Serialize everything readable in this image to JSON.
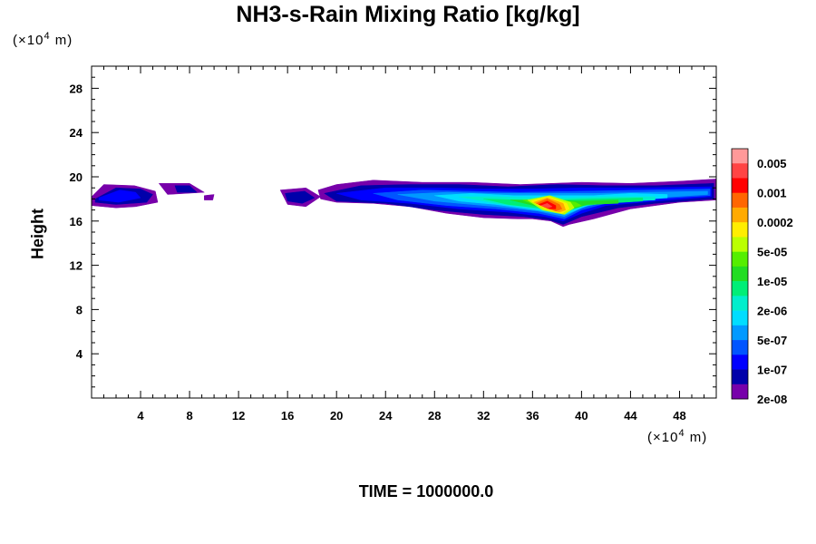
{
  "title": "NH3-s-Rain Mixing Ratio [kg/kg]",
  "y_unit": {
    "prefix": "(×10",
    "exp": "4",
    "suffix": " m)"
  },
  "x_unit": {
    "prefix": "(×10",
    "exp": "4",
    "suffix": " m)"
  },
  "ylabel": "Height",
  "footer": "TIME = 1000000.0",
  "chart_data": {
    "type": "heatmap",
    "title": "NH3-s-Rain Mixing Ratio [kg/kg]",
    "xlabel": "",
    "ylabel": "Height",
    "x_unit": "×10^4 m",
    "y_unit": "×10^4 m",
    "xlim": [
      0,
      51
    ],
    "ylim": [
      0,
      30
    ],
    "xticks": [
      4,
      8,
      12,
      16,
      20,
      24,
      28,
      32,
      36,
      40,
      44,
      48
    ],
    "yticks": [
      4,
      8,
      12,
      16,
      20,
      24,
      28
    ],
    "grid": false,
    "colorbar": {
      "position": "right",
      "labels": [
        "0.005",
        "0.001",
        "0.0002",
        "5e-05",
        "1e-05",
        "2e-06",
        "5e-07",
        "1e-07",
        "2e-08"
      ],
      "colors": [
        "#ff9999",
        "#ff4444",
        "#ff0000",
        "#ff6600",
        "#ffaa00",
        "#ffee00",
        "#bbff00",
        "#55ee00",
        "#22dd22",
        "#00ee77",
        "#00eecc",
        "#00ddff",
        "#0099ff",
        "#0055ff",
        "#0000ff",
        "#0000aa",
        "#7700aa"
      ]
    },
    "regions": [
      {
        "level": 0,
        "color": "#7700aa",
        "bounds": [
          [
            0,
            18.2
          ],
          [
            1,
            19.3
          ],
          [
            3.5,
            19.2
          ],
          [
            5.2,
            18.7
          ],
          [
            5.4,
            17.7
          ],
          [
            3.6,
            17.3
          ],
          [
            2,
            17.2
          ],
          [
            0,
            17.4
          ]
        ]
      },
      {
        "level": 0,
        "color": "#7700aa",
        "bounds": [
          [
            5.5,
            19.4
          ],
          [
            8,
            19.4
          ],
          [
            9.2,
            18.6
          ],
          [
            6.2,
            18.4
          ]
        ]
      },
      {
        "level": 0,
        "color": "#7700aa",
        "bounds": [
          [
            9.2,
            18.3
          ],
          [
            10,
            18.4
          ],
          [
            9.9,
            17.9
          ],
          [
            9.2,
            17.9
          ]
        ]
      },
      {
        "level": 0,
        "color": "#7700aa",
        "bounds": [
          [
            15.4,
            18.8
          ],
          [
            17.5,
            19
          ],
          [
            18.7,
            18.2
          ],
          [
            17.5,
            17.3
          ],
          [
            16,
            17.5
          ]
        ]
      },
      {
        "level": 0,
        "color": "#7700aa",
        "bounds": [
          [
            18.5,
            18.8
          ],
          [
            20,
            19.3
          ],
          [
            23,
            19.7
          ],
          [
            27,
            19.5
          ],
          [
            31,
            19.5
          ],
          [
            35,
            19.3
          ],
          [
            40,
            19.5
          ],
          [
            44,
            19.4
          ],
          [
            48,
            19.6
          ],
          [
            51,
            19.8
          ],
          [
            51,
            17.9
          ],
          [
            48,
            17.7
          ],
          [
            44,
            17.1
          ],
          [
            41,
            16.2
          ],
          [
            39,
            15.7
          ],
          [
            38.5,
            15.5
          ],
          [
            37.5,
            16
          ],
          [
            36,
            16.2
          ],
          [
            34.8,
            16.2
          ],
          [
            32,
            16.3
          ],
          [
            29,
            16.7
          ],
          [
            26,
            17.3
          ],
          [
            23,
            17.6
          ],
          [
            20,
            17.7
          ],
          [
            18.7,
            18
          ]
        ]
      },
      {
        "level": 1,
        "color": "#0000aa",
        "bounds": [
          [
            0.3,
            18
          ],
          [
            2,
            19
          ],
          [
            4,
            18.9
          ],
          [
            5,
            18.4
          ],
          [
            4.5,
            17.7
          ],
          [
            2,
            17.5
          ],
          [
            0.3,
            17.7
          ]
        ]
      },
      {
        "level": 1,
        "color": "#0000aa",
        "bounds": [
          [
            6.8,
            19.2
          ],
          [
            8,
            19.2
          ],
          [
            8.6,
            18.6
          ],
          [
            7,
            18.6
          ]
        ]
      },
      {
        "level": 1,
        "color": "#0000aa",
        "bounds": [
          [
            15.8,
            18.5
          ],
          [
            17.4,
            18.7
          ],
          [
            18.2,
            18.1
          ],
          [
            17.2,
            17.6
          ],
          [
            16,
            17.8
          ]
        ]
      },
      {
        "level": 1,
        "color": "#0000aa",
        "bounds": [
          [
            19,
            18.5
          ],
          [
            22,
            19.2
          ],
          [
            26,
            19.3
          ],
          [
            30,
            19.3
          ],
          [
            34,
            19.1
          ],
          [
            38,
            19.3
          ],
          [
            42,
            19.2
          ],
          [
            46,
            19.2
          ],
          [
            50.8,
            19.4
          ],
          [
            50.8,
            18
          ],
          [
            46,
            17.6
          ],
          [
            43,
            17.2
          ],
          [
            40,
            16.4
          ],
          [
            38.5,
            15.7
          ],
          [
            37.4,
            16.1
          ],
          [
            35.3,
            16.4
          ],
          [
            32,
            16.6
          ],
          [
            28,
            17
          ],
          [
            24,
            17.6
          ],
          [
            20,
            17.8
          ]
        ]
      },
      {
        "level": 2,
        "color": "#0000ff",
        "bounds": [
          [
            0.6,
            18.1
          ],
          [
            2.3,
            18.8
          ],
          [
            3.6,
            18.6
          ],
          [
            4,
            18.1
          ],
          [
            2.2,
            17.7
          ],
          [
            0.6,
            17.9
          ]
        ]
      },
      {
        "level": 2,
        "color": "#0000ff",
        "bounds": [
          [
            20,
            18.5
          ],
          [
            24,
            19
          ],
          [
            28,
            19
          ],
          [
            32,
            18.9
          ],
          [
            36,
            18.9
          ],
          [
            40,
            19
          ],
          [
            45,
            19
          ],
          [
            50.6,
            19.1
          ],
          [
            50.6,
            18.2
          ],
          [
            46,
            17.8
          ],
          [
            42,
            17.4
          ],
          [
            40,
            16.7
          ],
          [
            38.5,
            16
          ],
          [
            37,
            16.4
          ],
          [
            34,
            16.8
          ],
          [
            30,
            17.1
          ],
          [
            26,
            17.6
          ],
          [
            22,
            17.9
          ]
        ]
      },
      {
        "level": 3,
        "color": "#0055ff",
        "bounds": [
          [
            23,
            18.5
          ],
          [
            27,
            18.8
          ],
          [
            31,
            18.7
          ],
          [
            35,
            18.6
          ],
          [
            40,
            18.7
          ],
          [
            45,
            18.8
          ],
          [
            50.5,
            18.9
          ],
          [
            50.5,
            18.3
          ],
          [
            46,
            18
          ],
          [
            42,
            17.6
          ],
          [
            40,
            17
          ],
          [
            38.6,
            16.2
          ],
          [
            36.5,
            16.7
          ],
          [
            33,
            17.1
          ],
          [
            29,
            17.4
          ],
          [
            25,
            17.9
          ]
        ]
      },
      {
        "level": 4,
        "color": "#0099ff",
        "bounds": [
          [
            25,
            18.4
          ],
          [
            29,
            18.6
          ],
          [
            33,
            18.5
          ],
          [
            37,
            18.5
          ],
          [
            41,
            18.5
          ],
          [
            45,
            18.6
          ],
          [
            50.3,
            18.7
          ],
          [
            50.3,
            18.4
          ],
          [
            46,
            18.1
          ],
          [
            42,
            17.8
          ],
          [
            40,
            17.2
          ],
          [
            38.6,
            16.4
          ],
          [
            36.4,
            16.9
          ],
          [
            33,
            17.3
          ],
          [
            28,
            17.8
          ]
        ]
      },
      {
        "level": 5,
        "color": "#00ddff",
        "bounds": [
          [
            28,
            18.3
          ],
          [
            31,
            18.5
          ],
          [
            34.5,
            18.3
          ],
          [
            38,
            18.3
          ],
          [
            41,
            18.3
          ],
          [
            44,
            18.5
          ],
          [
            47,
            18.4
          ],
          [
            47,
            18.1
          ],
          [
            43,
            17.8
          ],
          [
            40.5,
            17.4
          ],
          [
            38.7,
            16.6
          ],
          [
            36.3,
            17
          ],
          [
            33,
            17.5
          ],
          [
            30,
            17.8
          ]
        ]
      },
      {
        "level": 6,
        "color": "#00eecc",
        "bounds": [
          [
            30,
            18.2
          ],
          [
            33,
            18.2
          ],
          [
            36,
            18.1
          ],
          [
            39,
            18.1
          ],
          [
            42,
            18.2
          ],
          [
            46,
            18.2
          ],
          [
            46,
            17.9
          ],
          [
            42,
            17.7
          ],
          [
            40.2,
            17.4
          ],
          [
            38.8,
            16.8
          ],
          [
            36.3,
            17.1
          ],
          [
            33,
            17.6
          ]
        ]
      },
      {
        "level": 7,
        "color": "#00ee77",
        "bounds": [
          [
            32,
            18
          ],
          [
            35,
            17.9
          ],
          [
            38,
            17.9
          ],
          [
            41,
            18
          ],
          [
            45,
            18.1
          ],
          [
            45,
            17.8
          ],
          [
            42,
            17.6
          ],
          [
            40.2,
            17.4
          ],
          [
            38.8,
            16.9
          ],
          [
            36.4,
            17.2
          ],
          [
            34,
            17.5
          ]
        ]
      },
      {
        "level": 8,
        "color": "#22dd22",
        "bounds": [
          [
            34.2,
            17.9
          ],
          [
            37,
            17.9
          ],
          [
            40,
            17.8
          ],
          [
            43,
            17.9
          ],
          [
            43,
            17.6
          ],
          [
            40.5,
            17.5
          ],
          [
            38.9,
            17
          ],
          [
            36.5,
            17.3
          ]
        ]
      },
      {
        "level": 9,
        "color": "#55ee00",
        "bounds": [
          [
            35.2,
            17.9
          ],
          [
            37.5,
            18
          ],
          [
            39.5,
            17.7
          ],
          [
            40,
            17.4
          ],
          [
            38.9,
            17.1
          ],
          [
            36.6,
            17.3
          ]
        ]
      },
      {
        "level": 10,
        "color": "#bbff00",
        "bounds": [
          [
            35.6,
            17.9
          ],
          [
            37.4,
            18.3
          ],
          [
            39.1,
            17.7
          ],
          [
            39.4,
            17.2
          ],
          [
            38.6,
            16.6
          ],
          [
            36.8,
            17
          ]
        ]
      },
      {
        "level": 11,
        "color": "#ffee00",
        "bounds": [
          [
            35.9,
            17.8
          ],
          [
            37.3,
            18.2
          ],
          [
            38.8,
            17.6
          ],
          [
            39,
            17.1
          ],
          [
            38.4,
            16.7
          ],
          [
            37,
            17.1
          ]
        ]
      },
      {
        "level": 12,
        "color": "#ffaa00",
        "bounds": [
          [
            36.1,
            17.7
          ],
          [
            37.2,
            18.1
          ],
          [
            38.5,
            17.6
          ],
          [
            38.7,
            17
          ],
          [
            38.2,
            16.8
          ],
          [
            37.2,
            17.1
          ]
        ]
      },
      {
        "level": 13,
        "color": "#ff6600",
        "bounds": [
          [
            36.3,
            17.6
          ],
          [
            37.2,
            18
          ],
          [
            38.2,
            17.5
          ],
          [
            38.4,
            17.1
          ],
          [
            37.9,
            16.9
          ],
          [
            37.3,
            17.2
          ]
        ]
      },
      {
        "level": 14,
        "color": "#ff0000",
        "bounds": [
          [
            36.5,
            17.5
          ],
          [
            37.2,
            17.8
          ],
          [
            37.9,
            17.4
          ],
          [
            37.9,
            17.1
          ],
          [
            37.4,
            17.1
          ]
        ]
      },
      {
        "level": 15,
        "color": "#ff4444",
        "bounds": [
          [
            36.7,
            17.4
          ],
          [
            37.2,
            17.6
          ],
          [
            37.6,
            17.3
          ],
          [
            37.3,
            17.2
          ]
        ]
      }
    ]
  }
}
